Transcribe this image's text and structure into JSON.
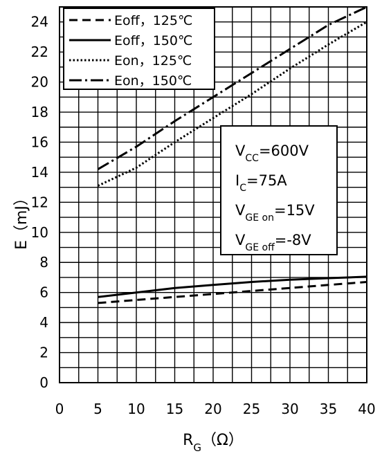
{
  "chart_data": {
    "type": "line",
    "title": "",
    "xlabel": {
      "main": "R",
      "sub": "G",
      "unit": "（Ω）"
    },
    "ylabel": "E（mJ）",
    "xlim": [
      0,
      40
    ],
    "ylim": [
      0,
      25
    ],
    "x_ticks": [
      "0",
      "5",
      "10",
      "15",
      "20",
      "25",
      "30",
      "35",
      "40"
    ],
    "y_ticks": [
      "0",
      "2",
      "4",
      "6",
      "8",
      "10",
      "12",
      "14",
      "16",
      "18",
      "20",
      "22",
      "24"
    ],
    "grid": true,
    "legend_position": "top-left",
    "series": [
      {
        "name": "Eoff，125℃",
        "style": "dashed",
        "x": [
          5,
          10,
          15,
          20,
          25,
          30,
          35,
          40
        ],
        "y": [
          5.3,
          5.5,
          5.7,
          5.9,
          6.1,
          6.3,
          6.5,
          6.7
        ]
      },
      {
        "name": "Eoff，150℃",
        "style": "solid",
        "x": [
          5,
          10,
          15,
          20,
          25,
          30,
          35,
          40
        ],
        "y": [
          5.7,
          6.0,
          6.3,
          6.5,
          6.7,
          6.85,
          6.95,
          7.05
        ]
      },
      {
        "name": "Eon，125℃",
        "style": "dotted",
        "x": [
          5,
          10,
          15,
          20,
          25,
          30,
          35,
          40
        ],
        "y": [
          13.1,
          14.3,
          16.0,
          17.6,
          19.2,
          20.9,
          22.5,
          24.0
        ]
      },
      {
        "name": "Eon，150℃",
        "style": "dashdot",
        "x": [
          5,
          10,
          15,
          20,
          25,
          30,
          35,
          40
        ],
        "y": [
          14.2,
          15.7,
          17.4,
          19.0,
          20.6,
          22.2,
          23.8,
          25.0
        ]
      }
    ],
    "conditions": [
      {
        "main": "V",
        "sub": "CC",
        "rest": "=600V"
      },
      {
        "main": "I",
        "sub": "C",
        "rest": "=75A"
      },
      {
        "main": "V",
        "sub": "GE on",
        "rest": "=15V"
      },
      {
        "main": "V",
        "sub": "GE off",
        "rest": "=-8V"
      }
    ]
  }
}
